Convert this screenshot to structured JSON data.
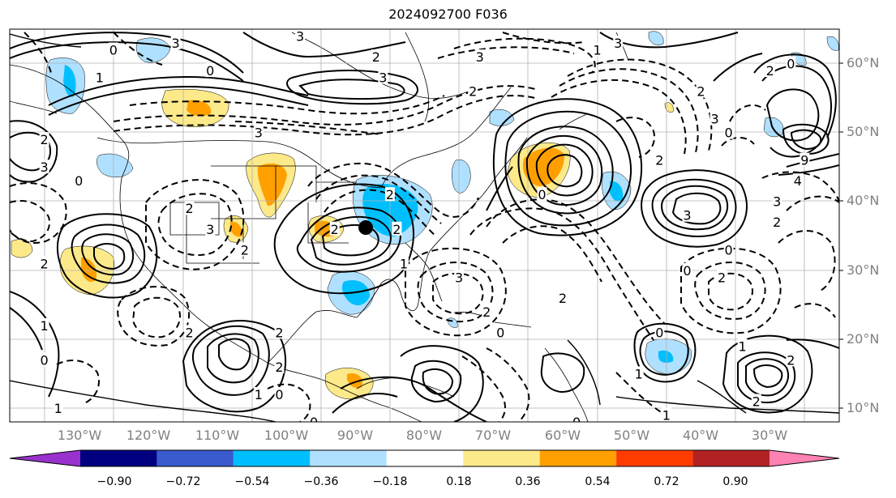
{
  "title": "2024092700 F036",
  "lat_labels": [
    "60°N",
    "50°N",
    "40°N",
    "30°N",
    "20°N",
    "10°N"
  ],
  "lon_labels": [
    "130°W",
    "120°W",
    "110°W",
    "100°W",
    "90°W",
    "80°W",
    "70°W",
    "60°W",
    "50°W",
    "40°W",
    "30°W"
  ],
  "colorbar": {
    "ticks": [
      "−0.90",
      "−0.72",
      "−0.54",
      "−0.36",
      "−0.18",
      "0.18",
      "0.36",
      "0.54",
      "0.72",
      "0.90"
    ],
    "colors": [
      "#9932cc",
      "#000080",
      "#3a5bcd",
      "#00bfff",
      "#b0e0ff",
      "#ffffff",
      "#fce98a",
      "#ffa000",
      "#ff3c00",
      "#b22222",
      "#ff82b4"
    ]
  },
  "contour_labels": [
    {
      "text": "0",
      "lon": -125,
      "lat": 62
    },
    {
      "text": "3",
      "lon": -116,
      "lat": 63
    },
    {
      "text": "3",
      "lon": -98,
      "lat": 64
    },
    {
      "text": "2",
      "lon": -87,
      "lat": 61
    },
    {
      "text": "3",
      "lon": -86,
      "lat": 58
    },
    {
      "text": "0",
      "lon": -111,
      "lat": 59
    },
    {
      "text": "1",
      "lon": -127,
      "lat": 58
    },
    {
      "text": "2",
      "lon": -135,
      "lat": 49
    },
    {
      "text": "3",
      "lon": -135,
      "lat": 45
    },
    {
      "text": "0",
      "lon": -130,
      "lat": 43
    },
    {
      "text": "3",
      "lon": -104,
      "lat": 50
    },
    {
      "text": "3",
      "lon": -111,
      "lat": 36
    },
    {
      "text": "2",
      "lon": -114,
      "lat": 39
    },
    {
      "text": "2",
      "lon": -106,
      "lat": 33
    },
    {
      "text": "2",
      "lon": -135,
      "lat": 31
    },
    {
      "text": "2",
      "lon": -85,
      "lat": 41
    },
    {
      "text": "2",
      "lon": -84,
      "lat": 36
    },
    {
      "text": "2",
      "lon": -93,
      "lat": 36
    },
    {
      "text": "3",
      "lon": -75,
      "lat": 29
    },
    {
      "text": "2",
      "lon": -73,
      "lat": 56
    },
    {
      "text": "3",
      "lon": -72,
      "lat": 61
    },
    {
      "text": "1",
      "lon": -55,
      "lat": 62
    },
    {
      "text": "3",
      "lon": -52,
      "lat": 63
    },
    {
      "text": "2",
      "lon": -40,
      "lat": 56
    },
    {
      "text": "2",
      "lon": -46,
      "lat": 46
    },
    {
      "text": "0",
      "lon": -36,
      "lat": 50
    },
    {
      "text": "2",
      "lon": -30,
      "lat": 59
    },
    {
      "text": "0",
      "lon": -27,
      "lat": 60
    },
    {
      "text": "3",
      "lon": -38,
      "lat": 52
    },
    {
      "text": "9",
      "lon": -25,
      "lat": 46
    },
    {
      "text": "4",
      "lon": -26,
      "lat": 43
    },
    {
      "text": "3",
      "lon": -42,
      "lat": 38
    },
    {
      "text": "2",
      "lon": -29,
      "lat": 37
    },
    {
      "text": "3",
      "lon": -29,
      "lat": 40
    },
    {
      "text": "0",
      "lon": -36,
      "lat": 33
    },
    {
      "text": "2",
      "lon": -37,
      "lat": 29
    },
    {
      "text": "0",
      "lon": -42,
      "lat": 30
    },
    {
      "text": "0",
      "lon": -46,
      "lat": 21
    },
    {
      "text": "1",
      "lon": -49,
      "lat": 15
    },
    {
      "text": "0",
      "lon": -69,
      "lat": 21
    },
    {
      "text": "2",
      "lon": -71,
      "lat": 24
    },
    {
      "text": "2",
      "lon": -101,
      "lat": 21
    },
    {
      "text": "2",
      "lon": -101,
      "lat": 16
    },
    {
      "text": "0",
      "lon": -101,
      "lat": 12
    },
    {
      "text": "1",
      "lon": -104,
      "lat": 12
    },
    {
      "text": "2",
      "lon": -114,
      "lat": 21
    },
    {
      "text": "0",
      "lon": -135,
      "lat": 17
    },
    {
      "text": "1",
      "lon": -135,
      "lat": 22
    },
    {
      "text": "1",
      "lon": -133,
      "lat": 10
    },
    {
      "text": "0",
      "lon": -96,
      "lat": 8
    },
    {
      "text": "0",
      "lon": -58,
      "lat": 8
    },
    {
      "text": "1",
      "lon": -45,
      "lat": 9
    },
    {
      "text": "2",
      "lon": -32,
      "lat": 11
    },
    {
      "text": "2",
      "lon": -27,
      "lat": 17
    },
    {
      "text": "1",
      "lon": -34,
      "lat": 19
    },
    {
      "text": "0",
      "lon": -63,
      "lat": 41
    },
    {
      "text": "1",
      "lon": -83,
      "lat": 31
    },
    {
      "text": "2",
      "lon": -60,
      "lat": 26
    }
  ],
  "markers": [
    {
      "name": "storm-center",
      "lon": -88.5,
      "lat": 36.2
    }
  ]
}
